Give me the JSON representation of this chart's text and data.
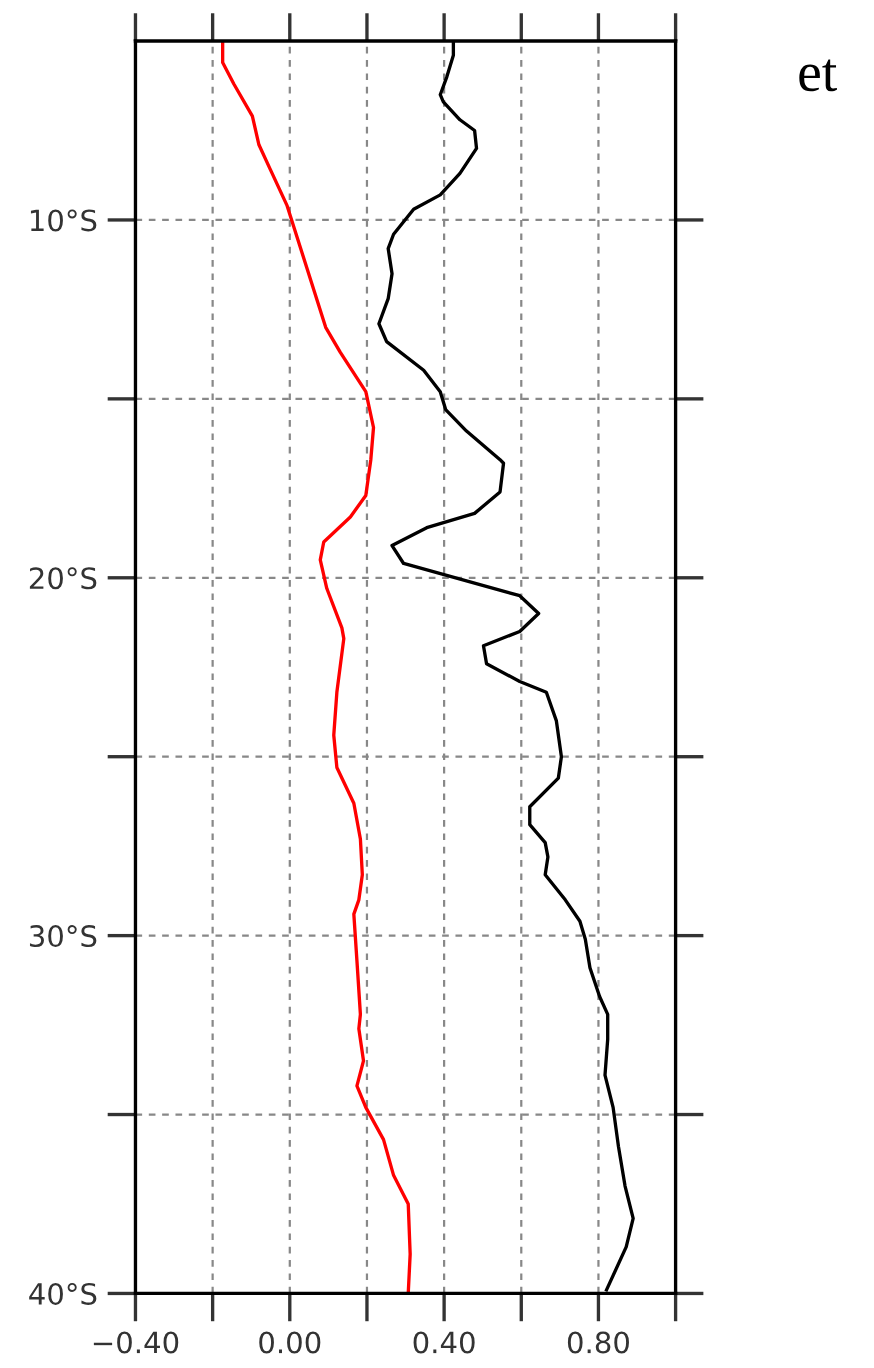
{
  "chart_data": {
    "type": "line",
    "annotations": [
      "et"
    ],
    "xlim": [
      -0.4,
      1.0
    ],
    "xticks": [
      {
        "value": -0.4,
        "label": "−0.40"
      },
      {
        "value": -0.2,
        "label": null
      },
      {
        "value": 0,
        "label": "0.00"
      },
      {
        "value": 0.2,
        "label": null
      },
      {
        "value": 0.4,
        "label": "0.40"
      },
      {
        "value": 0.6,
        "label": null
      },
      {
        "value": 0.8,
        "label": "0.80"
      },
      {
        "value": 1.0,
        "label": null
      }
    ],
    "ylim": [
      -40,
      -5
    ],
    "yticks": [
      {
        "value": -10,
        "label": "10°S"
      },
      {
        "value": -15,
        "label": null
      },
      {
        "value": -20,
        "label": "20°S"
      },
      {
        "value": -25,
        "label": null
      },
      {
        "value": -30,
        "label": "30°S"
      },
      {
        "value": -35,
        "label": null
      },
      {
        "value": -40,
        "label": "40°S"
      }
    ],
    "grid": true,
    "legend": false,
    "marker": "none",
    "line_style": "solid",
    "series": [
      {
        "color": "#ff0000",
        "x": [
          -0.174,
          -0.174,
          -0.145,
          -0.097,
          -0.08,
          -0.05,
          -0.007,
          0.093,
          0.131,
          0.197,
          0.217,
          0.21,
          0.197,
          0.157,
          0.088,
          0.079,
          0.096,
          0.135,
          0.14,
          0.122,
          0.114,
          0.122,
          0.166,
          0.183,
          0.188,
          0.179,
          0.166,
          0.174,
          0.183,
          0.179,
          0.191,
          0.174,
          0.197,
          0.243,
          0.269,
          0.307,
          0.312,
          0.307
        ],
        "values": [
          -5,
          -5.6,
          -6.2,
          -7.1,
          -7.9,
          -8.6,
          -9.6,
          -13.0,
          -13.7,
          -14.8,
          -15.8,
          -16.7,
          -17.7,
          -18.3,
          -19.0,
          -19.5,
          -20.3,
          -21.4,
          -21.7,
          -23.2,
          -24.4,
          -25.3,
          -26.3,
          -27.3,
          -28.3,
          -29.0,
          -29.4,
          -30.7,
          -32.2,
          -32.6,
          -33.5,
          -34.2,
          -34.8,
          -35.7,
          -36.7,
          -37.5,
          -38.9,
          -40.0
        ]
      },
      {
        "color": "#000000",
        "x": [
          0.424,
          0.424,
          0.407,
          0.39,
          0.398,
          0.441,
          0.479,
          0.484,
          0.441,
          0.39,
          0.321,
          0.269,
          0.255,
          0.265,
          0.255,
          0.231,
          0.251,
          0.347,
          0.39,
          0.404,
          0.458,
          0.545,
          0.554,
          0.545,
          0.479,
          0.355,
          0.265,
          0.295,
          0.596,
          0.645,
          0.596,
          0.502,
          0.51,
          0.596,
          0.665,
          0.691,
          0.704,
          0.696,
          0.622,
          0.622,
          0.662,
          0.669,
          0.662,
          0.714,
          0.752,
          0.766,
          0.778,
          0.803,
          0.824,
          0.824,
          0.817,
          0.838,
          0.852,
          0.869,
          0.89,
          0.872,
          0.821
        ],
        "values": [
          -5,
          -5.4,
          -6.0,
          -6.5,
          -6.7,
          -7.2,
          -7.5,
          -8.0,
          -8.7,
          -9.3,
          -9.7,
          -10.4,
          -10.8,
          -11.5,
          -12.2,
          -12.9,
          -13.4,
          -14.2,
          -14.8,
          -15.3,
          -15.9,
          -16.7,
          -16.8,
          -17.6,
          -18.2,
          -18.6,
          -19.1,
          -19.6,
          -20.5,
          -21.0,
          -21.5,
          -21.9,
          -22.4,
          -22.9,
          -23.2,
          -24.0,
          -25.0,
          -25.6,
          -26.4,
          -26.9,
          -27.4,
          -27.8,
          -28.3,
          -29.0,
          -29.6,
          -30.1,
          -30.9,
          -31.7,
          -32.2,
          -32.9,
          -33.9,
          -34.8,
          -35.9,
          -37.0,
          -37.9,
          -38.7,
          -39.9
        ]
      }
    ]
  }
}
